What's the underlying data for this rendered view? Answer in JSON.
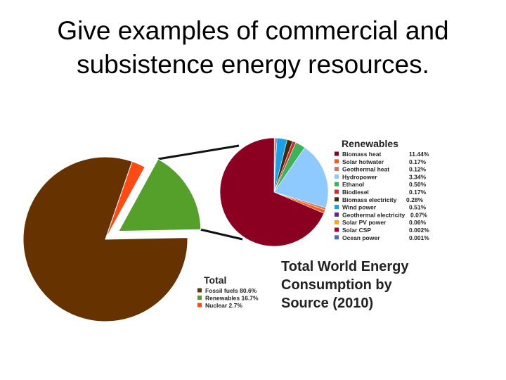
{
  "slide": {
    "title_line1": "Give examples of commercial and",
    "title_line2": "subsistence energy resources."
  },
  "caption": {
    "line1": "Total World Energy",
    "line2": "Consumption by",
    "line3": "Source (2010)"
  },
  "chart_data": [
    {
      "type": "pie",
      "title": "Total",
      "slices": [
        {
          "label": "Fossil fuels",
          "value_text": "80.6%",
          "value": 80.6,
          "color": "#663300"
        },
        {
          "label": "Renewables",
          "value_text": "16.7%",
          "value": 16.7,
          "color": "#55a02a",
          "exploded": true
        },
        {
          "label": "Nuclear",
          "value_text": "2.7%",
          "value": 2.7,
          "color": "#ff4a14"
        }
      ]
    },
    {
      "type": "pie",
      "title": "Renewables",
      "slices": [
        {
          "label": "Biomass heat",
          "value_text": "11.44%",
          "value": 11.44,
          "color": "#8b0021"
        },
        {
          "label": "Solar hotwater",
          "value_text": "0.17%",
          "value": 0.17,
          "color": "#ff5a1e"
        },
        {
          "label": "Geothermal heat",
          "value_text": "0.12%",
          "value": 0.12,
          "color": "#c97b5f"
        },
        {
          "label": "Hydropower",
          "value_text": "3.34%",
          "value": 3.34,
          "color": "#8ec9ff"
        },
        {
          "label": "Ethanol",
          "value_text": "0.50%",
          "value": 0.5,
          "color": "#3cb35a"
        },
        {
          "label": "Biodiesel",
          "value_text": "0.17%",
          "value": 0.17,
          "color": "#d42a2a"
        },
        {
          "label": "Biomass electricity",
          "value_text": "0.28%",
          "value": 0.28,
          "color": "#3d2b12"
        },
        {
          "label": "Wind power",
          "value_text": "0.51%",
          "value": 0.51,
          "color": "#1aa0e6"
        },
        {
          "label": "Geothermal electricity",
          "value_text": "0.07%",
          "value": 0.07,
          "color": "#5b2a86"
        },
        {
          "label": "Solar PV power",
          "value_text": "0.06%",
          "value": 0.06,
          "color": "#f5a623"
        },
        {
          "label": "Solar CSP",
          "value_text": "0.002%",
          "value": 0.002,
          "color": "#b0002a"
        },
        {
          "label": "Ocean power",
          "value_text": "0.001%",
          "value": 0.001,
          "color": "#4a6fb5"
        }
      ]
    }
  ]
}
